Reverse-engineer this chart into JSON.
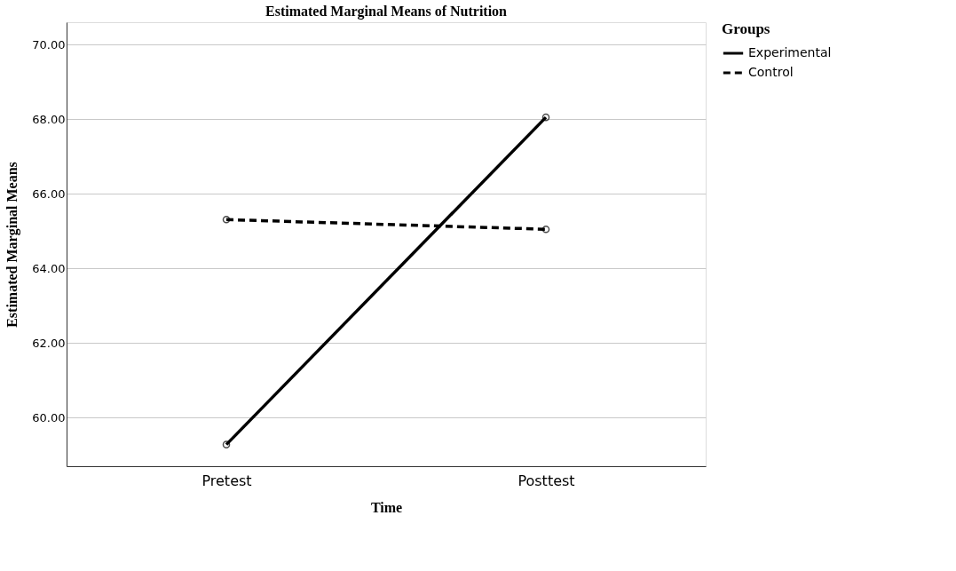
{
  "chart_data": {
    "type": "line",
    "title": "Estimated Marginal Means of Nutrition",
    "xlabel": "Time",
    "ylabel": "Estimated Marginal Means",
    "legend_title": "Groups",
    "categories": [
      "Pretest",
      "Posttest"
    ],
    "series": [
      {
        "name": "Experimental",
        "color": "#000000",
        "values": [
          59.28,
          68.05
        ],
        "line_style": "solid"
      },
      {
        "name": "Control",
        "color": "#000000",
        "values": [
          65.31,
          65.05
        ],
        "line_style": "dashed"
      }
    ],
    "ylim": [
      58.7,
      70.6
    ],
    "yticks": [
      {
        "value": 60,
        "label": "60.00"
      },
      {
        "value": 62,
        "label": "62.00"
      },
      {
        "value": 64,
        "label": "64.00"
      },
      {
        "value": 66,
        "label": "66.00"
      },
      {
        "value": 68,
        "label": "68.00"
      },
      {
        "value": 70,
        "label": "70.00"
      }
    ],
    "grid": "y",
    "legend": "top right",
    "marker": "circle"
  }
}
